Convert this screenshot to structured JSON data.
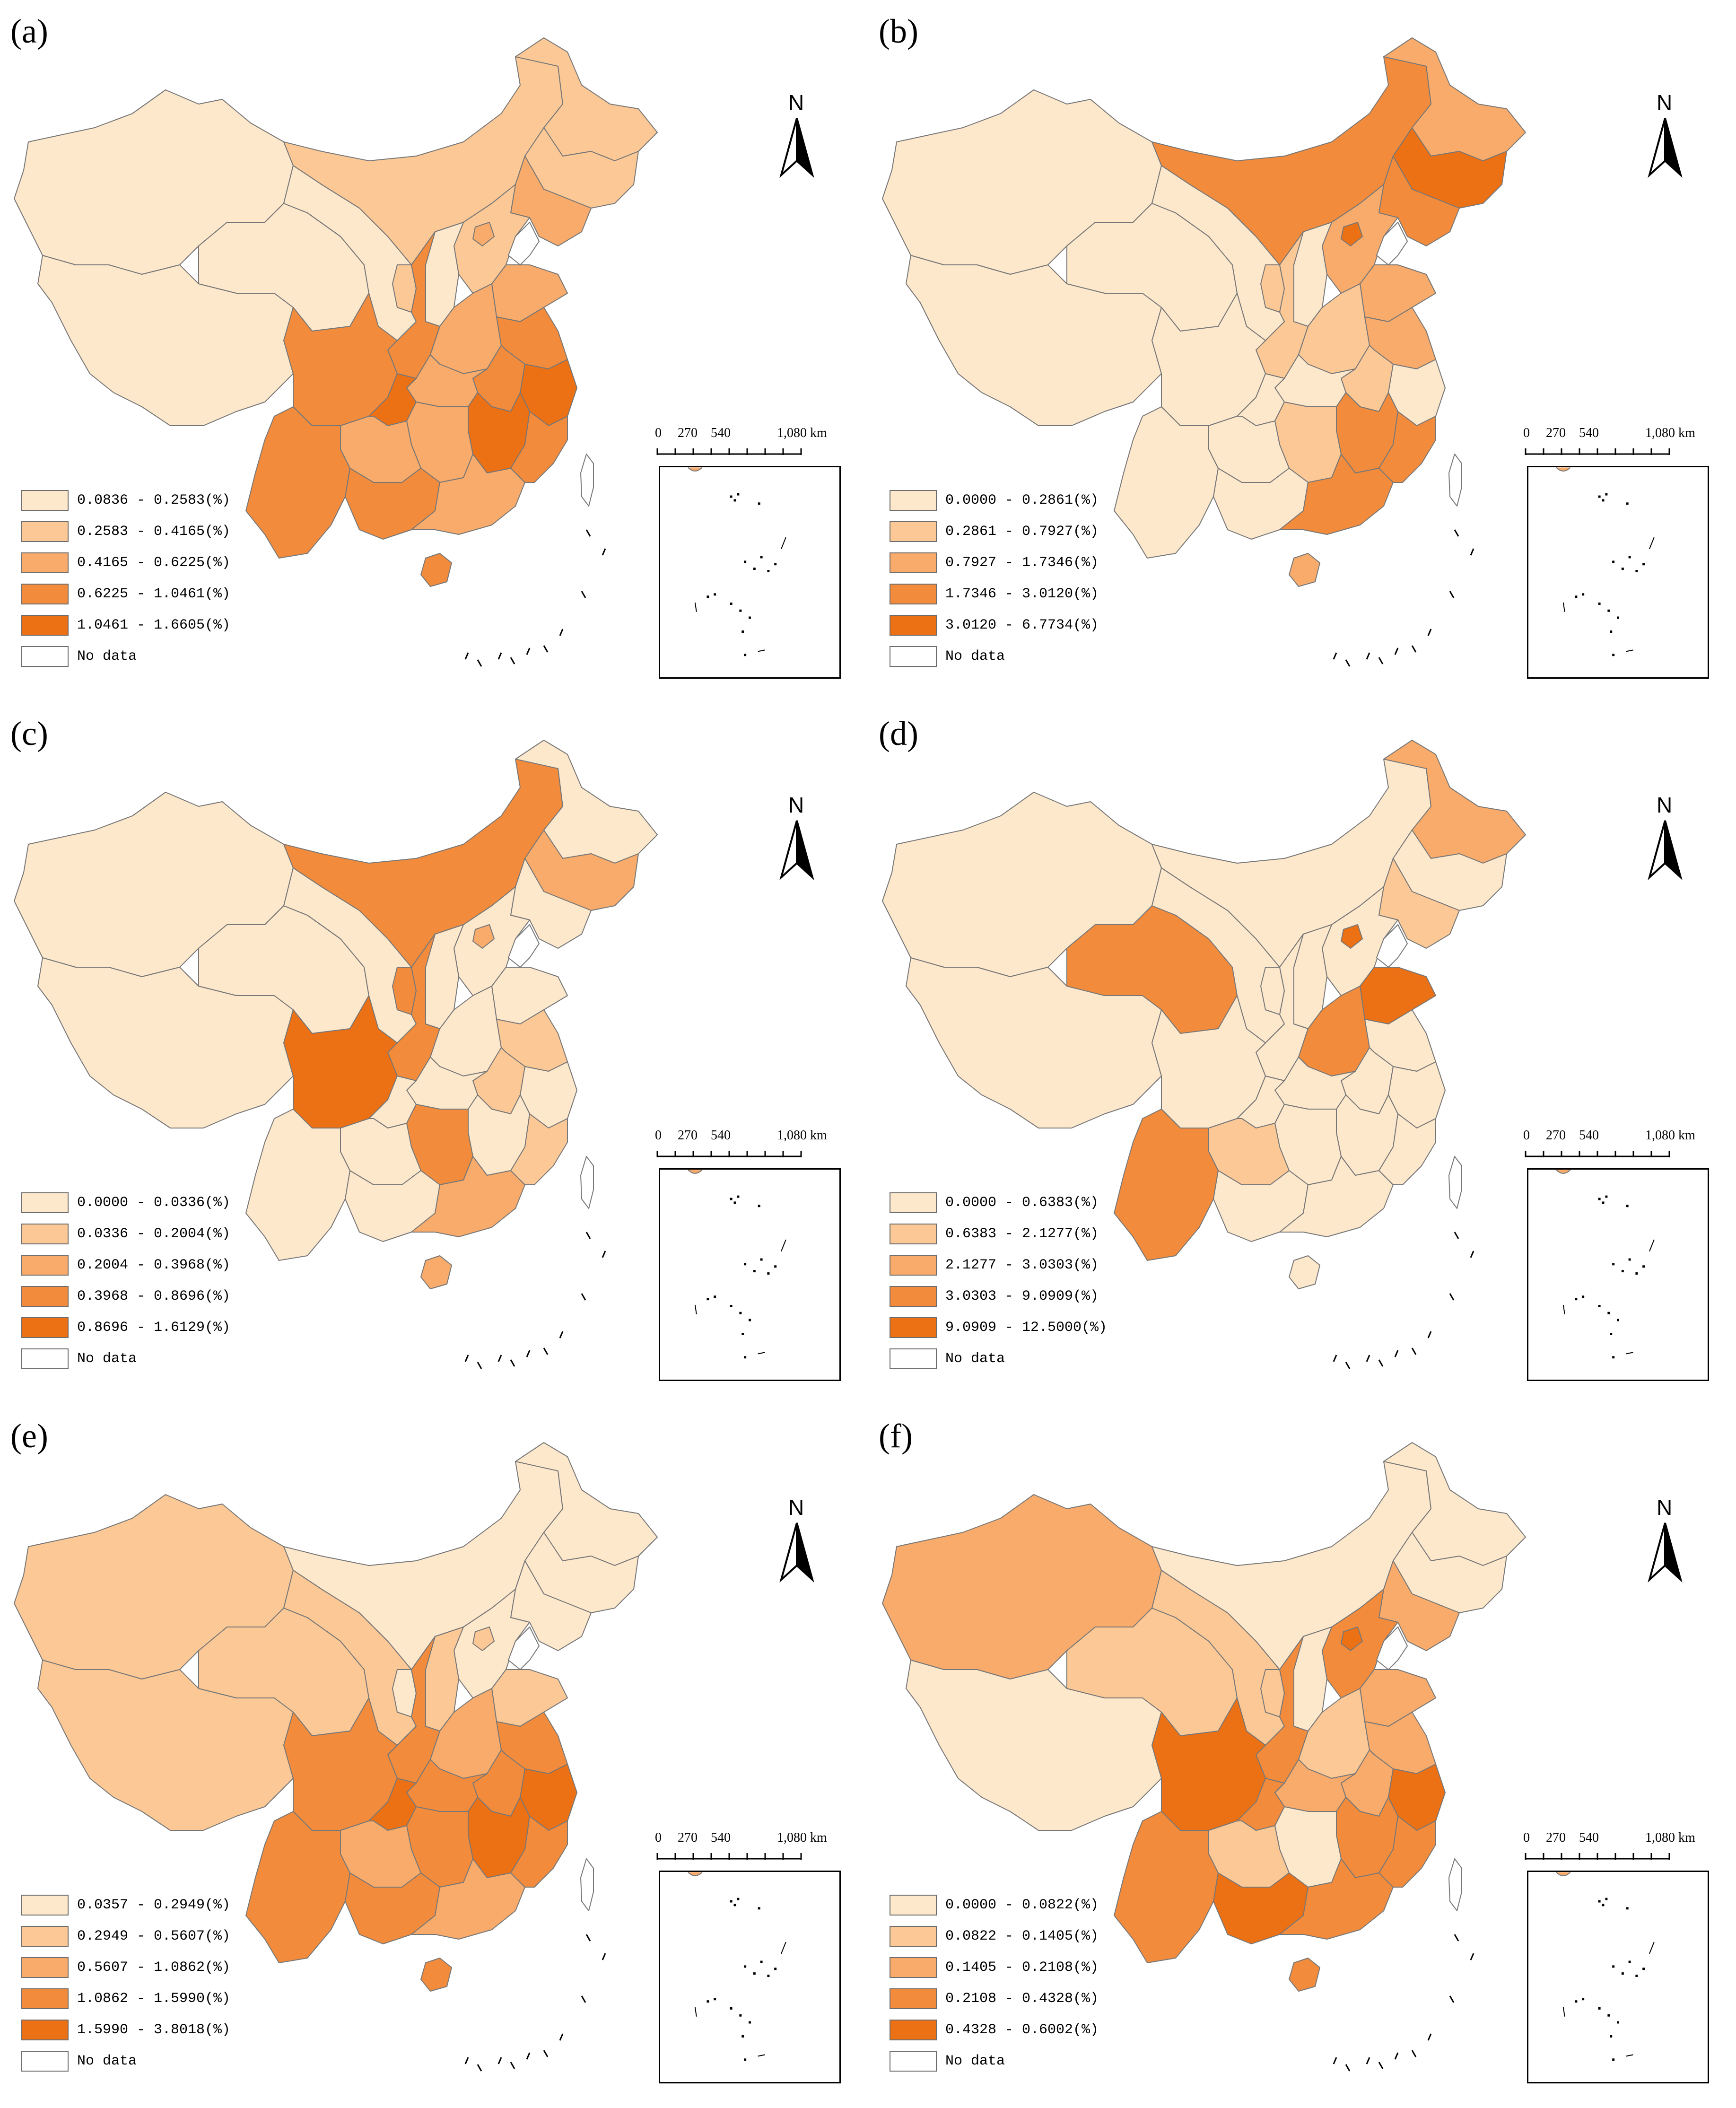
{
  "map": {
    "north_label": "N",
    "no_data_label": "No data",
    "scale_labels": [
      "0",
      "270",
      "540",
      "1,080 km"
    ],
    "colors": [
      "#fde8cc",
      "#fcc996",
      "#f8ab6a",
      "#f28c3c",
      "#ec7014",
      "#ffffff"
    ],
    "panels": [
      {
        "letter": "(a)",
        "legend": [
          "0.0836 - 0.2583(%)",
          "0.2583 - 0.4165(%)",
          "0.4165 - 0.6225(%)",
          "0.6225 - 1.0461(%)",
          "1.0461 - 1.6605(%)"
        ],
        "classes": {
          "xinjiang": 0,
          "tibet": 0,
          "qinghai": 0,
          "gansu": 0,
          "ningxia": 1,
          "innermongolia": 1,
          "heilongjiang": 1,
          "jilin": 1,
          "liaoning": 2,
          "hebei": 1,
          "beijing": 2,
          "shanxi": 0,
          "shaanxi": 3,
          "sichuan": 3,
          "chongqing": 4,
          "yunnan": 3,
          "guizhou": 2,
          "guangxi": 3,
          "guangdong": 2,
          "hunan": 2,
          "hubei": 2,
          "henan": 2,
          "shandong": 2,
          "jiangsu": 3,
          "anhui": 3,
          "zhejiang": 4,
          "jiangxi": 4,
          "fujian": 3,
          "hainan": 3,
          "taiwan": 5
        }
      },
      {
        "letter": "(b)",
        "legend": [
          "0.0000 - 0.2861(%)",
          "0.2861 - 0.7927(%)",
          "0.7927 - 1.7346(%)",
          "1.7346 - 3.0120(%)",
          "3.0120 - 6.7734(%)"
        ],
        "classes": {
          "xinjiang": 0,
          "tibet": 0,
          "qinghai": 0,
          "gansu": 0,
          "ningxia": 1,
          "innermongolia": 3,
          "heilongjiang": 2,
          "jilin": 4,
          "liaoning": 3,
          "hebei": 2,
          "beijing": 4,
          "shanxi": 0,
          "shaanxi": 1,
          "sichuan": 0,
          "chongqing": 0,
          "yunnan": 0,
          "guizhou": 0,
          "guangxi": 0,
          "guangdong": 3,
          "hunan": 1,
          "hubei": 0,
          "henan": 1,
          "shandong": 2,
          "jiangsu": 2,
          "anhui": 1,
          "zhejiang": 0,
          "jiangxi": 3,
          "fujian": 3,
          "hainan": 2,
          "taiwan": 5
        }
      },
      {
        "letter": "(c)",
        "legend": [
          "0.0000 - 0.0336(%)",
          "0.0336 - 0.2004(%)",
          "0.2004 - 0.3968(%)",
          "0.3968 - 0.8696(%)",
          "0.8696 - 1.6129(%)"
        ],
        "classes": {
          "xinjiang": 0,
          "tibet": 0,
          "qinghai": 0,
          "gansu": 0,
          "ningxia": 3,
          "innermongolia": 3,
          "heilongjiang": 0,
          "jilin": 2,
          "liaoning": 0,
          "hebei": 0,
          "beijing": 2,
          "shanxi": 0,
          "shaanxi": 3,
          "sichuan": 4,
          "chongqing": 0,
          "yunnan": 0,
          "guizhou": 0,
          "guangxi": 0,
          "guangdong": 2,
          "hunan": 3,
          "hubei": 0,
          "henan": 0,
          "shandong": 0,
          "jiangsu": 1,
          "anhui": 1,
          "zhejiang": 0,
          "jiangxi": 0,
          "fujian": 1,
          "hainan": 2,
          "taiwan": 5
        }
      },
      {
        "letter": "(d)",
        "legend": [
          "0.0000 - 0.6383(%)",
          "0.6383 - 2.1277(%)",
          "2.1277 - 3.0303(%)",
          "3.0303 - 9.0909(%)",
          "9.0909 - 12.5000(%)"
        ],
        "classes": {
          "xinjiang": 0,
          "tibet": 0,
          "qinghai": 3,
          "gansu": 0,
          "ningxia": 0,
          "innermongolia": 0,
          "heilongjiang": 2,
          "jilin": 0,
          "liaoning": 1,
          "hebei": 0,
          "beijing": 4,
          "shanxi": 0,
          "shaanxi": 0,
          "sichuan": 0,
          "chongqing": 0,
          "yunnan": 3,
          "guizhou": 1,
          "guangxi": 0,
          "guangdong": 0,
          "hunan": 0,
          "hubei": 0,
          "henan": 3,
          "shandong": 4,
          "jiangsu": 0,
          "anhui": 0,
          "zhejiang": 0,
          "jiangxi": 0,
          "fujian": 0,
          "hainan": 0,
          "taiwan": 5
        }
      },
      {
        "letter": "(e)",
        "legend": [
          "0.0357 - 0.2949(%)",
          "0.2949 - 0.5607(%)",
          "0.5607 - 1.0862(%)",
          "1.0862 - 1.5990(%)",
          "1.5990 - 3.8018(%)"
        ],
        "classes": {
          "xinjiang": 1,
          "tibet": 1,
          "qinghai": 1,
          "gansu": 1,
          "ningxia": 0,
          "innermongolia": 0,
          "heilongjiang": 0,
          "jilin": 0,
          "liaoning": 0,
          "hebei": 0,
          "beijing": 1,
          "shanxi": 1,
          "shaanxi": 3,
          "sichuan": 3,
          "chongqing": 4,
          "yunnan": 3,
          "guizhou": 2,
          "guangxi": 3,
          "guangdong": 2,
          "hunan": 3,
          "hubei": 3,
          "henan": 2,
          "shandong": 1,
          "jiangsu": 3,
          "anhui": 3,
          "zhejiang": 4,
          "jiangxi": 4,
          "fujian": 3,
          "hainan": 3,
          "taiwan": 5
        }
      },
      {
        "letter": "(f)",
        "legend": [
          "0.0000 - 0.0822(%)",
          "0.0822 - 0.1405(%)",
          "0.1405 - 0.2108(%)",
          "0.2108 - 0.4328(%)",
          "0.4328 - 0.6002(%)"
        ],
        "classes": {
          "xinjiang": 2,
          "tibet": 0,
          "qinghai": 1,
          "gansu": 1,
          "ningxia": 1,
          "innermongolia": 0,
          "heilongjiang": 0,
          "jilin": 0,
          "liaoning": 2,
          "hebei": 3,
          "beijing": 4,
          "shanxi": 0,
          "shaanxi": 3,
          "sichuan": 4,
          "chongqing": 3,
          "yunnan": 3,
          "guizhou": 1,
          "guangxi": 4,
          "guangdong": 3,
          "hunan": 0,
          "hubei": 2,
          "henan": 1,
          "shandong": 2,
          "jiangsu": 2,
          "anhui": 2,
          "zhejiang": 4,
          "jiangxi": 3,
          "fujian": 3,
          "hainan": 3,
          "taiwan": 5
        }
      }
    ]
  }
}
